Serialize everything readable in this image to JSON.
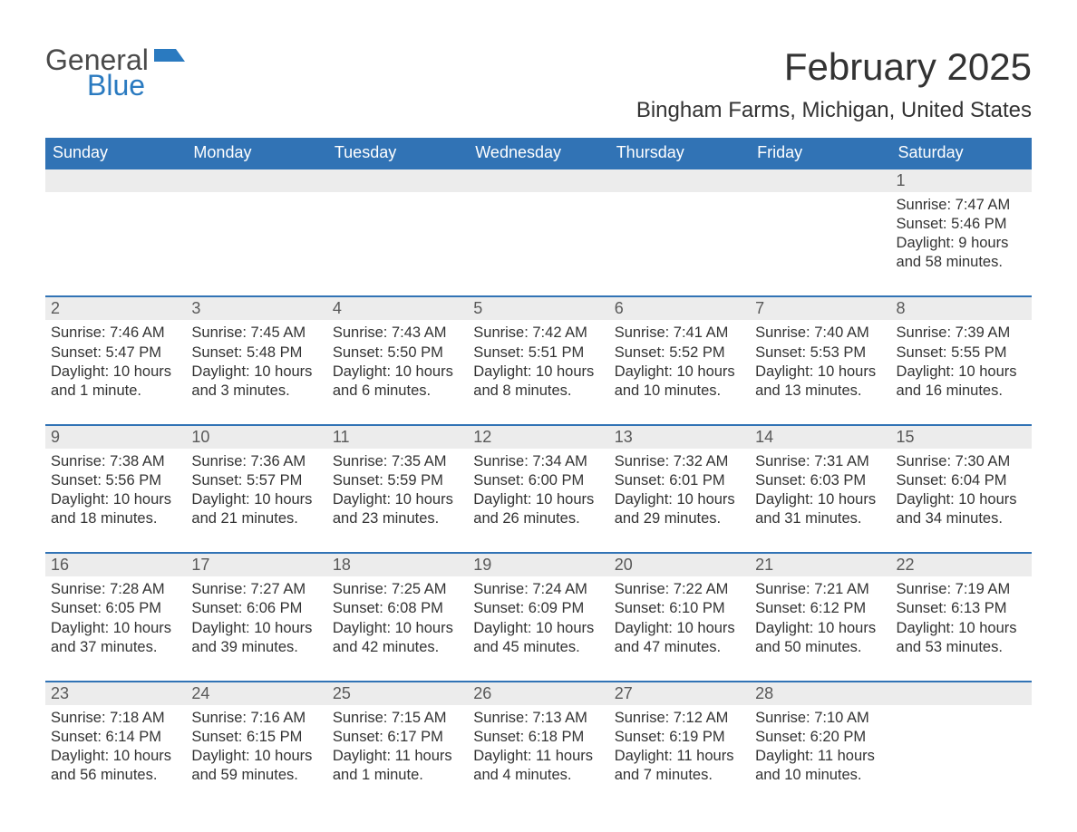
{
  "logo": {
    "part1": "General",
    "part2": "Blue"
  },
  "title": "February 2025",
  "location": "Bingham Farms, Michigan, United States",
  "header_bg": "#3173b5",
  "daynames": [
    "Sunday",
    "Monday",
    "Tuesday",
    "Wednesday",
    "Thursday",
    "Friday",
    "Saturday"
  ],
  "weeks": [
    [
      {
        "d": "",
        "sr": "",
        "ss": "",
        "dl1": "",
        "dl2": ""
      },
      {
        "d": "",
        "sr": "",
        "ss": "",
        "dl1": "",
        "dl2": ""
      },
      {
        "d": "",
        "sr": "",
        "ss": "",
        "dl1": "",
        "dl2": ""
      },
      {
        "d": "",
        "sr": "",
        "ss": "",
        "dl1": "",
        "dl2": ""
      },
      {
        "d": "",
        "sr": "",
        "ss": "",
        "dl1": "",
        "dl2": ""
      },
      {
        "d": "",
        "sr": "",
        "ss": "",
        "dl1": "",
        "dl2": ""
      },
      {
        "d": "1",
        "sr": "Sunrise: 7:47 AM",
        "ss": "Sunset: 5:46 PM",
        "dl1": "Daylight: 9 hours",
        "dl2": "and 58 minutes."
      }
    ],
    [
      {
        "d": "2",
        "sr": "Sunrise: 7:46 AM",
        "ss": "Sunset: 5:47 PM",
        "dl1": "Daylight: 10 hours",
        "dl2": "and 1 minute."
      },
      {
        "d": "3",
        "sr": "Sunrise: 7:45 AM",
        "ss": "Sunset: 5:48 PM",
        "dl1": "Daylight: 10 hours",
        "dl2": "and 3 minutes."
      },
      {
        "d": "4",
        "sr": "Sunrise: 7:43 AM",
        "ss": "Sunset: 5:50 PM",
        "dl1": "Daylight: 10 hours",
        "dl2": "and 6 minutes."
      },
      {
        "d": "5",
        "sr": "Sunrise: 7:42 AM",
        "ss": "Sunset: 5:51 PM",
        "dl1": "Daylight: 10 hours",
        "dl2": "and 8 minutes."
      },
      {
        "d": "6",
        "sr": "Sunrise: 7:41 AM",
        "ss": "Sunset: 5:52 PM",
        "dl1": "Daylight: 10 hours",
        "dl2": "and 10 minutes."
      },
      {
        "d": "7",
        "sr": "Sunrise: 7:40 AM",
        "ss": "Sunset: 5:53 PM",
        "dl1": "Daylight: 10 hours",
        "dl2": "and 13 minutes."
      },
      {
        "d": "8",
        "sr": "Sunrise: 7:39 AM",
        "ss": "Sunset: 5:55 PM",
        "dl1": "Daylight: 10 hours",
        "dl2": "and 16 minutes."
      }
    ],
    [
      {
        "d": "9",
        "sr": "Sunrise: 7:38 AM",
        "ss": "Sunset: 5:56 PM",
        "dl1": "Daylight: 10 hours",
        "dl2": "and 18 minutes."
      },
      {
        "d": "10",
        "sr": "Sunrise: 7:36 AM",
        "ss": "Sunset: 5:57 PM",
        "dl1": "Daylight: 10 hours",
        "dl2": "and 21 minutes."
      },
      {
        "d": "11",
        "sr": "Sunrise: 7:35 AM",
        "ss": "Sunset: 5:59 PM",
        "dl1": "Daylight: 10 hours",
        "dl2": "and 23 minutes."
      },
      {
        "d": "12",
        "sr": "Sunrise: 7:34 AM",
        "ss": "Sunset: 6:00 PM",
        "dl1": "Daylight: 10 hours",
        "dl2": "and 26 minutes."
      },
      {
        "d": "13",
        "sr": "Sunrise: 7:32 AM",
        "ss": "Sunset: 6:01 PM",
        "dl1": "Daylight: 10 hours",
        "dl2": "and 29 minutes."
      },
      {
        "d": "14",
        "sr": "Sunrise: 7:31 AM",
        "ss": "Sunset: 6:03 PM",
        "dl1": "Daylight: 10 hours",
        "dl2": "and 31 minutes."
      },
      {
        "d": "15",
        "sr": "Sunrise: 7:30 AM",
        "ss": "Sunset: 6:04 PM",
        "dl1": "Daylight: 10 hours",
        "dl2": "and 34 minutes."
      }
    ],
    [
      {
        "d": "16",
        "sr": "Sunrise: 7:28 AM",
        "ss": "Sunset: 6:05 PM",
        "dl1": "Daylight: 10 hours",
        "dl2": "and 37 minutes."
      },
      {
        "d": "17",
        "sr": "Sunrise: 7:27 AM",
        "ss": "Sunset: 6:06 PM",
        "dl1": "Daylight: 10 hours",
        "dl2": "and 39 minutes."
      },
      {
        "d": "18",
        "sr": "Sunrise: 7:25 AM",
        "ss": "Sunset: 6:08 PM",
        "dl1": "Daylight: 10 hours",
        "dl2": "and 42 minutes."
      },
      {
        "d": "19",
        "sr": "Sunrise: 7:24 AM",
        "ss": "Sunset: 6:09 PM",
        "dl1": "Daylight: 10 hours",
        "dl2": "and 45 minutes."
      },
      {
        "d": "20",
        "sr": "Sunrise: 7:22 AM",
        "ss": "Sunset: 6:10 PM",
        "dl1": "Daylight: 10 hours",
        "dl2": "and 47 minutes."
      },
      {
        "d": "21",
        "sr": "Sunrise: 7:21 AM",
        "ss": "Sunset: 6:12 PM",
        "dl1": "Daylight: 10 hours",
        "dl2": "and 50 minutes."
      },
      {
        "d": "22",
        "sr": "Sunrise: 7:19 AM",
        "ss": "Sunset: 6:13 PM",
        "dl1": "Daylight: 10 hours",
        "dl2": "and 53 minutes."
      }
    ],
    [
      {
        "d": "23",
        "sr": "Sunrise: 7:18 AM",
        "ss": "Sunset: 6:14 PM",
        "dl1": "Daylight: 10 hours",
        "dl2": "and 56 minutes."
      },
      {
        "d": "24",
        "sr": "Sunrise: 7:16 AM",
        "ss": "Sunset: 6:15 PM",
        "dl1": "Daylight: 10 hours",
        "dl2": "and 59 minutes."
      },
      {
        "d": "25",
        "sr": "Sunrise: 7:15 AM",
        "ss": "Sunset: 6:17 PM",
        "dl1": "Daylight: 11 hours",
        "dl2": "and 1 minute."
      },
      {
        "d": "26",
        "sr": "Sunrise: 7:13 AM",
        "ss": "Sunset: 6:18 PM",
        "dl1": "Daylight: 11 hours",
        "dl2": "and 4 minutes."
      },
      {
        "d": "27",
        "sr": "Sunrise: 7:12 AM",
        "ss": "Sunset: 6:19 PM",
        "dl1": "Daylight: 11 hours",
        "dl2": "and 7 minutes."
      },
      {
        "d": "28",
        "sr": "Sunrise: 7:10 AM",
        "ss": "Sunset: 6:20 PM",
        "dl1": "Daylight: 11 hours",
        "dl2": "and 10 minutes."
      },
      {
        "d": "",
        "sr": "",
        "ss": "",
        "dl1": "",
        "dl2": ""
      }
    ]
  ]
}
